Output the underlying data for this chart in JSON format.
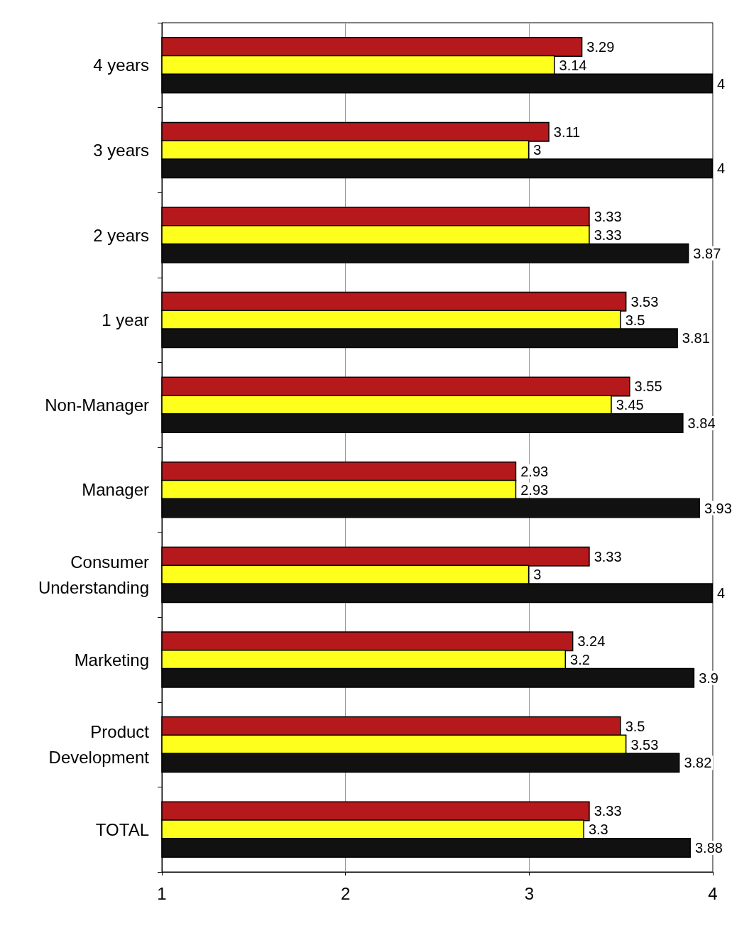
{
  "chart_data": {
    "type": "bar",
    "orientation": "horizontal",
    "categories": [
      "4 years",
      "3 years",
      "2 years",
      "1 year",
      "Non-Manager",
      "Manager",
      "Consumer\nUnderstanding",
      "Marketing",
      "Product\nDevelopment",
      "TOTAL"
    ],
    "series": [
      {
        "color": "#b5191c",
        "values": [
          3.29,
          3.11,
          3.33,
          3.53,
          3.55,
          2.93,
          3.33,
          3.24,
          3.5,
          3.33
        ]
      },
      {
        "color": "#ffff1e",
        "values": [
          3.14,
          3,
          3.33,
          3.5,
          3.45,
          2.93,
          3,
          3.2,
          3.53,
          3.3
        ]
      },
      {
        "color": "#111111",
        "values": [
          4,
          4,
          3.87,
          3.81,
          3.84,
          3.93,
          4,
          3.9,
          3.82,
          3.88
        ]
      }
    ],
    "xlim": [
      1,
      4
    ],
    "xticks": [
      1,
      2,
      3,
      4
    ],
    "grid": "x",
    "data_labels": true
  }
}
